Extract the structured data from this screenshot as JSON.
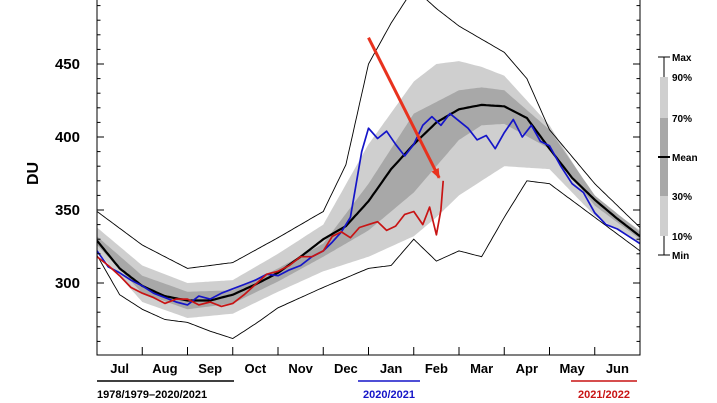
{
  "chart_data": {
    "type": "line",
    "ylabel": "DU",
    "ylim": [
      255,
      500
    ],
    "y_ticks": [
      300,
      350,
      400,
      450
    ],
    "months": [
      "Jul",
      "Aug",
      "Sep",
      "Oct",
      "Nov",
      "Dec",
      "Jan",
      "Feb",
      "Mar",
      "Apr",
      "May",
      "Jun"
    ],
    "x_unit": "month index (0 = 1 Jul, 12 = 30 Jun)",
    "envelope_series": [
      {
        "name": "Max",
        "x": [
          0,
          1,
          2,
          3,
          4,
          5,
          5.5,
          6,
          6.5,
          7,
          7.5,
          8,
          9,
          9.5,
          10,
          11,
          12
        ],
        "values": [
          349,
          326,
          310,
          314,
          331,
          349,
          381,
          450,
          478,
          502,
          488,
          476,
          458,
          440,
          405,
          368,
          338
        ]
      },
      {
        "name": "90%",
        "x": [
          0,
          1,
          2,
          3,
          4,
          5,
          6,
          7,
          7.5,
          8,
          8.5,
          9,
          10,
          11,
          12
        ],
        "values": [
          338,
          312,
          300,
          302,
          320,
          340,
          395,
          438,
          450,
          452,
          448,
          442,
          408,
          358,
          336
        ]
      },
      {
        "name": "70%",
        "x": [
          0,
          1,
          2,
          3,
          4,
          5,
          6,
          7,
          8,
          8.5,
          9,
          10,
          11,
          12
        ],
        "values": [
          332,
          305,
          294,
          295,
          310,
          327,
          368,
          416,
          432,
          434,
          432,
          405,
          360,
          335
        ]
      },
      {
        "name": "Mean",
        "x": [
          0,
          0.5,
          1,
          1.5,
          2,
          2.5,
          3,
          3.5,
          4,
          4.5,
          5,
          5.5,
          6,
          6.5,
          7,
          7.5,
          8,
          8.5,
          9,
          9.5,
          10,
          10.5,
          11,
          11.5,
          12
        ],
        "values": [
          329,
          310,
          298,
          291,
          288,
          288,
          292,
          299,
          307,
          318,
          330,
          339,
          356,
          378,
          395,
          410,
          419,
          422,
          421,
          413,
          392,
          372,
          357,
          344,
          332
        ]
      },
      {
        "name": "30%",
        "x": [
          0,
          1,
          2,
          3,
          4,
          5,
          6,
          7,
          8,
          8.5,
          9,
          10,
          11,
          12
        ],
        "values": [
          326,
          293,
          282,
          286,
          301,
          318,
          336,
          362,
          398,
          408,
          409,
          392,
          353,
          330
        ]
      },
      {
        "name": "10%",
        "x": [
          0,
          1,
          2,
          3,
          4,
          5,
          6,
          7,
          7.5,
          8,
          9,
          10,
          11,
          12
        ],
        "values": [
          322,
          287,
          276,
          279,
          294,
          308,
          318,
          332,
          345,
          360,
          380,
          378,
          346,
          327
        ]
      },
      {
        "name": "Min",
        "x": [
          0,
          0.5,
          1,
          1.5,
          2,
          2.5,
          3,
          3.5,
          4,
          5,
          6,
          6.5,
          7,
          7.5,
          8,
          8.5,
          9,
          9.5,
          10,
          11,
          12
        ],
        "values": [
          319,
          292,
          282,
          275,
          273,
          267,
          262,
          272,
          283,
          297,
          310,
          312,
          330,
          315,
          322,
          318,
          345,
          370,
          368,
          345,
          322
        ]
      }
    ],
    "series": [
      {
        "name": "2020/2021",
        "color": "#1515c8",
        "x": [
          0,
          0.25,
          0.5,
          0.75,
          1,
          1.25,
          1.5,
          1.75,
          2,
          2.25,
          2.5,
          2.75,
          3,
          3.25,
          3.5,
          3.75,
          4,
          4.25,
          4.5,
          4.75,
          5,
          5.2,
          5.4,
          5.6,
          5.75,
          5.85,
          6,
          6.2,
          6.4,
          6.6,
          6.8,
          7,
          7.2,
          7.4,
          7.6,
          7.8,
          8,
          8.2,
          8.4,
          8.6,
          8.8,
          9,
          9.2,
          9.4,
          9.6,
          9.8,
          10,
          10.25,
          10.5,
          10.75,
          11,
          11.25,
          11.5,
          11.75,
          12
        ],
        "values": [
          322,
          311,
          307,
          302,
          298,
          293,
          290,
          287,
          285,
          291,
          289,
          293,
          296,
          299,
          302,
          306,
          305,
          309,
          312,
          318,
          322,
          328,
          335,
          345,
          372,
          390,
          406,
          399,
          404,
          395,
          387,
          395,
          408,
          414,
          408,
          416,
          411,
          406,
          398,
          401,
          392,
          403,
          412,
          400,
          408,
          397,
          394,
          380,
          368,
          362,
          348,
          340,
          337,
          332,
          327
        ]
      },
      {
        "name": "2021/2022",
        "color": "#c81414",
        "x": [
          0,
          0.25,
          0.5,
          0.75,
          1,
          1.25,
          1.5,
          1.75,
          2,
          2.25,
          2.5,
          2.75,
          3,
          3.25,
          3.5,
          3.75,
          4,
          4.25,
          4.5,
          4.75,
          5,
          5.2,
          5.4,
          5.6,
          5.8,
          6,
          6.2,
          6.4,
          6.6,
          6.8,
          7,
          7.2,
          7.35,
          7.5,
          7.6,
          7.65
        ],
        "values": [
          318,
          312,
          305,
          297,
          293,
          290,
          286,
          289,
          289,
          285,
          287,
          284,
          286,
          292,
          299,
          306,
          308,
          312,
          318,
          318,
          322,
          332,
          335,
          331,
          338,
          340,
          342,
          336,
          339,
          347,
          349,
          340,
          352,
          333,
          350,
          370
        ]
      }
    ],
    "legend": {
      "placement": "right",
      "entries": [
        "Max",
        "90%",
        "70%",
        "Mean",
        "30%",
        "10%",
        "Min"
      ]
    },
    "period_labels": [
      {
        "text": "1978/1979–2020/2021",
        "color": "#000000"
      },
      {
        "text": "2020/2021",
        "color": "#1515c8"
      },
      {
        "text": "2021/2022",
        "color": "#c81414"
      }
    ],
    "annotation": {
      "type": "arrow",
      "color": "#e8321e",
      "from": [
        6.0,
        468
      ],
      "to": [
        7.65,
        370
      ]
    },
    "colors": {
      "band_light": "#cfcfcf",
      "band_mid": "#a8a8a8",
      "band_dark": "#808080",
      "mean": "#000000"
    }
  }
}
